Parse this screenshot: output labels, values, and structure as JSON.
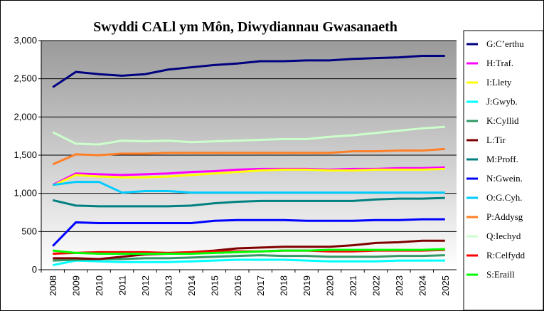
{
  "chart_data": {
    "type": "line",
    "title": "Swyddi CALl ym Môn, Diwydiannau Gwasanaeth",
    "categories": [
      "2008",
      "2009",
      "2010",
      "2011",
      "2012",
      "2013",
      "2014",
      "2015",
      "2016",
      "2017",
      "2018",
      "2019",
      "2020",
      "2021",
      "2022",
      "2023",
      "2024",
      "2025"
    ],
    "ylim": [
      0,
      3000
    ],
    "yticks": [
      0,
      500,
      {
        "value": 1000,
        "label": "1,000"
      },
      {
        "value": 1500,
        "label": "1,500"
      },
      {
        "value": 2000,
        "label": "2,000"
      },
      {
        "value": 2500,
        "label": "2,500"
      },
      {
        "value": 3000,
        "label": "3,000"
      }
    ],
    "grid": true,
    "series": [
      {
        "name": "G:C’erthu",
        "color": "#000080",
        "values": [
          2390,
          2590,
          2560,
          2540,
          2560,
          2620,
          2650,
          2680,
          2700,
          2730,
          2730,
          2740,
          2740,
          2760,
          2770,
          2780,
          2800,
          2800
        ]
      },
      {
        "name": "H:Traf.",
        "color": "#ff00ff",
        "values": [
          1110,
          1260,
          1250,
          1240,
          1250,
          1260,
          1280,
          1290,
          1310,
          1320,
          1320,
          1320,
          1310,
          1320,
          1320,
          1330,
          1330,
          1340
        ]
      },
      {
        "name": "I:Llety",
        "color": "#ffff00",
        "values": [
          1100,
          1240,
          1220,
          1210,
          1210,
          1220,
          1240,
          1260,
          1280,
          1300,
          1310,
          1310,
          1300,
          1300,
          1310,
          1310,
          1310,
          1320
        ]
      },
      {
        "name": "J:Gwyb.",
        "color": "#00ffff",
        "values": [
          60,
          120,
          110,
          100,
          100,
          100,
          110,
          120,
          130,
          130,
          130,
          120,
          110,
          110,
          110,
          120,
          120,
          120
        ]
      },
      {
        "name": "K:Cyllid",
        "color": "#339966",
        "values": [
          120,
          130,
          140,
          140,
          150,
          150,
          160,
          170,
          180,
          190,
          180,
          180,
          170,
          170,
          170,
          180,
          180,
          190
        ]
      },
      {
        "name": "L:Tir",
        "color": "#800000",
        "values": [
          150,
          150,
          140,
          170,
          200,
          210,
          230,
          250,
          280,
          290,
          300,
          300,
          300,
          320,
          350,
          360,
          380,
          380
        ]
      },
      {
        "name": "M:Proff.",
        "color": "#008080",
        "values": [
          910,
          840,
          830,
          830,
          830,
          830,
          840,
          870,
          890,
          900,
          900,
          900,
          900,
          900,
          920,
          930,
          930,
          940
        ]
      },
      {
        "name": "N:Gwein.",
        "color": "#0000ff",
        "values": [
          310,
          620,
          610,
          610,
          610,
          610,
          610,
          640,
          650,
          650,
          650,
          640,
          640,
          640,
          650,
          650,
          660,
          660
        ]
      },
      {
        "name": "O:G.Cyh.",
        "color": "#00ccff",
        "values": [
          1110,
          1150,
          1150,
          1010,
          1030,
          1030,
          1010,
          1010,
          1010,
          1010,
          1010,
          1010,
          1010,
          1010,
          1010,
          1010,
          1010,
          1010
        ]
      },
      {
        "name": "P:Addysg",
        "color": "#ff7f27",
        "values": [
          1380,
          1510,
          1500,
          1520,
          1520,
          1530,
          1530,
          1530,
          1530,
          1530,
          1530,
          1530,
          1530,
          1550,
          1550,
          1560,
          1560,
          1580
        ]
      },
      {
        "name": "Q:Iechyd",
        "color": "#ccffcc",
        "values": [
          1800,
          1650,
          1640,
          1690,
          1680,
          1690,
          1670,
          1680,
          1690,
          1700,
          1710,
          1710,
          1740,
          1760,
          1790,
          1820,
          1850,
          1870
        ]
      },
      {
        "name": "R:Celfydd",
        "color": "#ff0000",
        "values": [
          210,
          220,
          230,
          230,
          230,
          220,
          230,
          240,
          240,
          240,
          250,
          250,
          240,
          240,
          250,
          250,
          250,
          260
        ]
      },
      {
        "name": "S:Eraill",
        "color": "#00ff00",
        "values": [
          250,
          220,
          210,
          210,
          210,
          210,
          210,
          220,
          230,
          240,
          250,
          250,
          260,
          260,
          260,
          260,
          260,
          270
        ]
      }
    ]
  }
}
